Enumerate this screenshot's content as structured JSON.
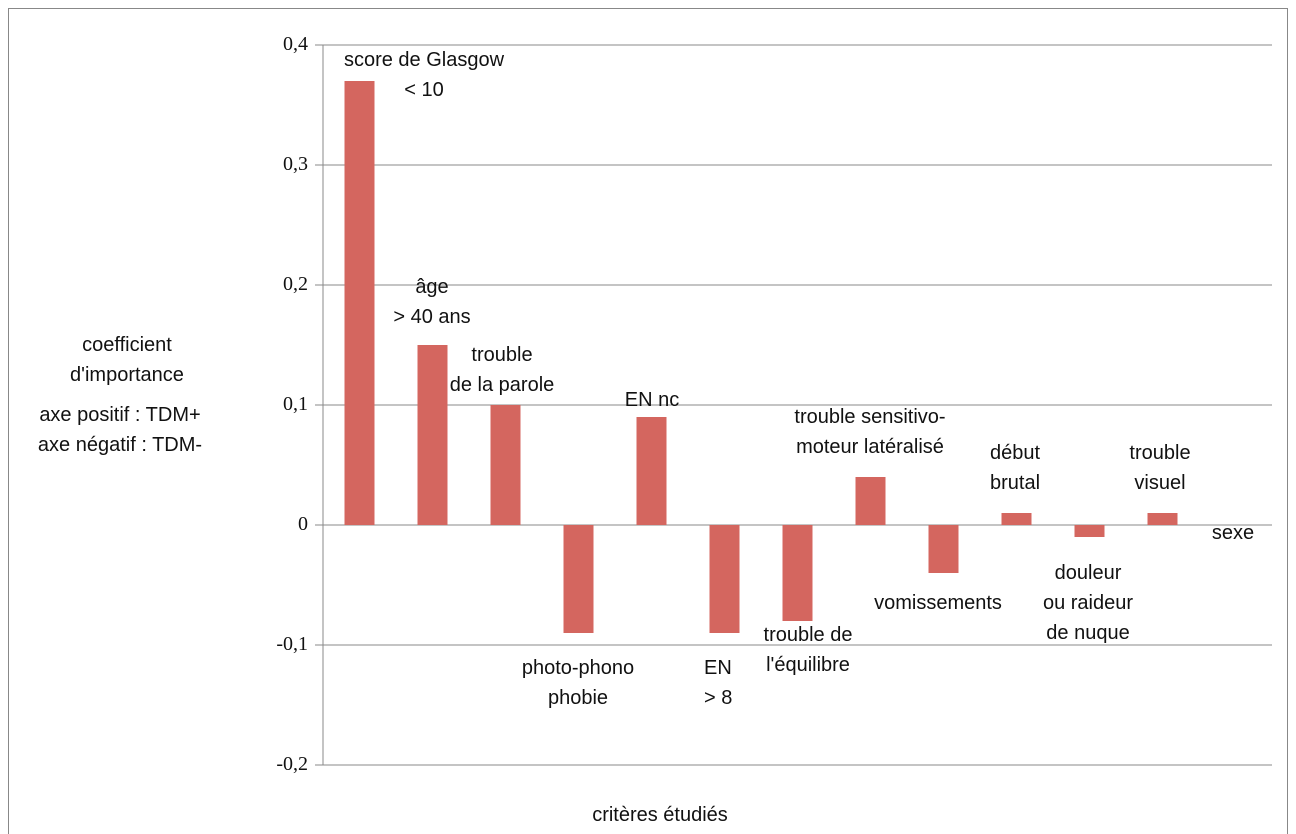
{
  "chart_data": {
    "type": "bar",
    "y_label": "coefficient\nd'importance",
    "y_label_note": "axe positif : TDM+\naxe négatif : TDM-",
    "x_label": "critères étudiés",
    "categories": [
      "score de Glasgow\n< 10",
      "âge\n> 40 ans",
      "trouble\nde la parole",
      "photo-phono\nphobie",
      "EN nc",
      "EN\n> 8",
      "trouble de\nl'équilibre",
      "trouble sensitivo-\nmoteur latéralisé",
      "vomissements",
      "début\nbrutal",
      "douleur\nou raideur\nde nuque",
      "trouble\nvisuel",
      "sexe"
    ],
    "values": [
      0.37,
      0.15,
      0.1,
      -0.09,
      0.09,
      -0.09,
      -0.08,
      0.04,
      -0.04,
      0.01,
      -0.01,
      0.01,
      0
    ],
    "color": "#d4665f",
    "ylim": [
      -0.2,
      0.4
    ],
    "yticks": [
      {
        "value": -0.2,
        "label": "-0,2"
      },
      {
        "value": -0.1,
        "label": "-0,1"
      },
      0,
      {
        "value": 0.1,
        "label": "0,1"
      },
      {
        "value": 0.2,
        "label": "0,2"
      },
      {
        "value": 0.3,
        "label": "0,3"
      },
      {
        "value": 0.4,
        "label": "0,4"
      }
    ],
    "grid": true
  }
}
